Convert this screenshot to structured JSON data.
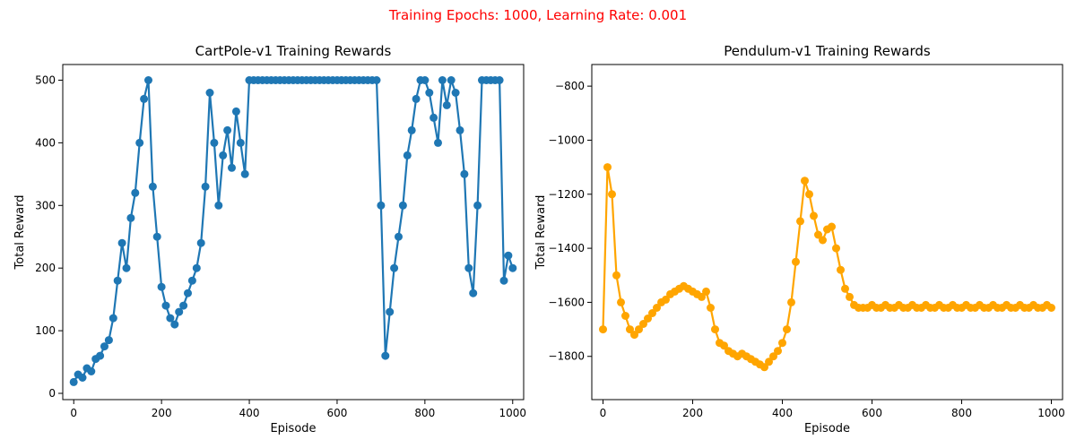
{
  "figure": {
    "suptitle": "Training Epochs: 1000, Learning Rate: 0.001",
    "suptitle_color": "#ff0000"
  },
  "chart_data": [
    {
      "type": "line",
      "title": "CartPole-v1 Training Rewards",
      "xlabel": "Episode",
      "ylabel": "Total Reward",
      "xlim": [
        -25,
        1025
      ],
      "ylim": [
        -10,
        525
      ],
      "xticks": [
        0,
        200,
        400,
        600,
        800,
        1000
      ],
      "yticks": [
        0,
        100,
        200,
        300,
        400,
        500
      ],
      "marker": "circle",
      "color": "#1f77b4",
      "series": [
        {
          "x": [
            0,
            10,
            20,
            30,
            40,
            50,
            60,
            70,
            80,
            90,
            100,
            110,
            120,
            130,
            140,
            150,
            160,
            170,
            180,
            190,
            200,
            210,
            220,
            230,
            240,
            250,
            260,
            270,
            280,
            290,
            300,
            310,
            320,
            330,
            340,
            350,
            360,
            370,
            380,
            390,
            400,
            410,
            420,
            430,
            440,
            450,
            460,
            470,
            480,
            490,
            500,
            510,
            520,
            530,
            540,
            550,
            560,
            570,
            580,
            590,
            600,
            610,
            620,
            630,
            640,
            650,
            660,
            670,
            680,
            690,
            700,
            710,
            720,
            730,
            740,
            750,
            760,
            770,
            780,
            790,
            800,
            810,
            820,
            830,
            840,
            850,
            860,
            870,
            880,
            890,
            900,
            910,
            920,
            930,
            940,
            950,
            960,
            970,
            980,
            990,
            1000
          ],
          "values": [
            18,
            30,
            25,
            40,
            35,
            55,
            60,
            75,
            85,
            120,
            180,
            240,
            200,
            280,
            320,
            400,
            470,
            500,
            330,
            250,
            170,
            140,
            120,
            110,
            130,
            140,
            160,
            180,
            200,
            240,
            330,
            480,
            400,
            300,
            380,
            420,
            360,
            450,
            400,
            350,
            500,
            500,
            500,
            500,
            500,
            500,
            500,
            500,
            500,
            500,
            500,
            500,
            500,
            500,
            500,
            500,
            500,
            500,
            500,
            500,
            500,
            500,
            500,
            500,
            500,
            500,
            500,
            500,
            500,
            500,
            300,
            60,
            130,
            200,
            250,
            300,
            380,
            420,
            470,
            500,
            500,
            480,
            440,
            400,
            500,
            460,
            500,
            480,
            420,
            350,
            200,
            160,
            300,
            500,
            500,
            500,
            500,
            500,
            180,
            220,
            200
          ]
        }
      ]
    },
    {
      "type": "line",
      "title": "Pendulum-v1 Training Rewards",
      "xlabel": "Episode",
      "ylabel": "Total Reward",
      "xlim": [
        -25,
        1025
      ],
      "ylim": [
        -1960,
        -720
      ],
      "xticks": [
        0,
        200,
        400,
        600,
        800,
        1000
      ],
      "yticks": [
        -800,
        -1000,
        -1200,
        -1400,
        -1600,
        -1800
      ],
      "marker": "circle",
      "color": "#ffa500",
      "series": [
        {
          "x": [
            0,
            10,
            20,
            30,
            40,
            50,
            60,
            70,
            80,
            90,
            100,
            110,
            120,
            130,
            140,
            150,
            160,
            170,
            180,
            190,
            200,
            210,
            220,
            230,
            240,
            250,
            260,
            270,
            280,
            290,
            300,
            310,
            320,
            330,
            340,
            350,
            360,
            370,
            380,
            390,
            400,
            410,
            420,
            430,
            440,
            450,
            460,
            470,
            480,
            490,
            500,
            510,
            520,
            530,
            540,
            550,
            560,
            570,
            580,
            590,
            600,
            610,
            620,
            630,
            640,
            650,
            660,
            670,
            680,
            690,
            700,
            710,
            720,
            730,
            740,
            750,
            760,
            770,
            780,
            790,
            800,
            810,
            820,
            830,
            840,
            850,
            860,
            870,
            880,
            890,
            900,
            910,
            920,
            930,
            940,
            950,
            960,
            970,
            980,
            990,
            1000
          ],
          "values": [
            -1700,
            -1100,
            -1200,
            -1500,
            -1600,
            -1650,
            -1700,
            -1720,
            -1700,
            -1680,
            -1660,
            -1640,
            -1620,
            -1600,
            -1590,
            -1570,
            -1560,
            -1550,
            -1540,
            -1550,
            -1560,
            -1570,
            -1580,
            -1560,
            -1620,
            -1700,
            -1750,
            -1760,
            -1780,
            -1790,
            -1800,
            -1790,
            -1800,
            -1810,
            -1820,
            -1830,
            -1840,
            -1820,
            -1800,
            -1780,
            -1750,
            -1700,
            -1600,
            -1450,
            -1300,
            -1150,
            -1200,
            -1280,
            -1350,
            -1370,
            -1330,
            -1320,
            -1400,
            -1480,
            -1550,
            -1580,
            -1610,
            -1620,
            -1620,
            -1620,
            -1610,
            -1620,
            -1620,
            -1610,
            -1620,
            -1620,
            -1610,
            -1620,
            -1620,
            -1610,
            -1620,
            -1620,
            -1610,
            -1620,
            -1620,
            -1610,
            -1620,
            -1620,
            -1610,
            -1620,
            -1620,
            -1610,
            -1620,
            -1620,
            -1610,
            -1620,
            -1620,
            -1610,
            -1620,
            -1620,
            -1610,
            -1620,
            -1620,
            -1610,
            -1620,
            -1620,
            -1610,
            -1620,
            -1620,
            -1610,
            -1620
          ]
        }
      ]
    }
  ]
}
